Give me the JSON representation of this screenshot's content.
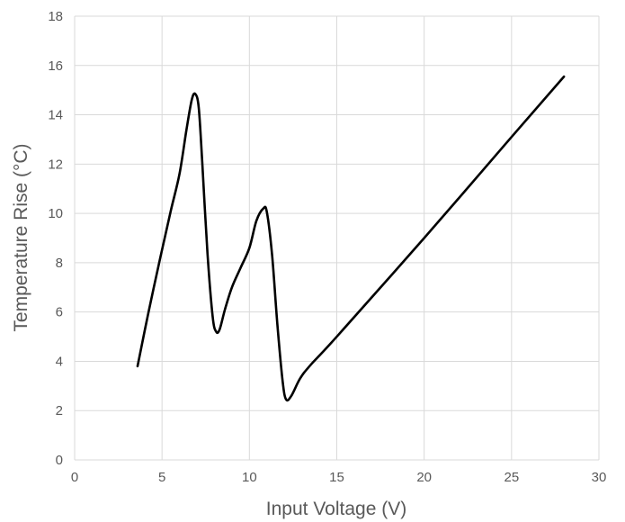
{
  "chart_data": {
    "type": "line",
    "title": "",
    "xlabel": "Input Voltage (V)",
    "ylabel": "Temperature Rise (°C)",
    "xlim": [
      0,
      30
    ],
    "ylim": [
      0,
      18
    ],
    "x_ticks": [
      0,
      5,
      10,
      15,
      20,
      25,
      30
    ],
    "y_ticks": [
      0,
      2,
      4,
      6,
      8,
      10,
      12,
      14,
      16,
      18
    ],
    "grid": true,
    "legend": "none",
    "series": [
      {
        "color": "#000000",
        "points": [
          [
            3.6,
            3.8
          ],
          [
            4.2,
            5.9
          ],
          [
            4.9,
            8.2
          ],
          [
            5.5,
            10.1
          ],
          [
            6.0,
            11.6
          ],
          [
            6.4,
            13.4
          ],
          [
            6.7,
            14.6
          ],
          [
            6.9,
            14.85
          ],
          [
            7.1,
            14.3
          ],
          [
            7.3,
            12.1
          ],
          [
            7.6,
            8.4
          ],
          [
            7.9,
            5.8
          ],
          [
            8.1,
            5.2
          ],
          [
            8.3,
            5.3
          ],
          [
            8.6,
            6.1
          ],
          [
            9.0,
            7.0
          ],
          [
            9.5,
            7.8
          ],
          [
            10.0,
            8.6
          ],
          [
            10.4,
            9.7
          ],
          [
            10.8,
            10.2
          ],
          [
            11.0,
            10.05
          ],
          [
            11.3,
            8.3
          ],
          [
            11.6,
            5.5
          ],
          [
            11.9,
            3.2
          ],
          [
            12.1,
            2.45
          ],
          [
            12.4,
            2.6
          ],
          [
            12.9,
            3.3
          ],
          [
            13.5,
            3.85
          ],
          [
            15.0,
            5.0
          ],
          [
            20.0,
            9.0
          ],
          [
            25.0,
            13.1
          ],
          [
            28.0,
            15.55
          ]
        ]
      }
    ]
  }
}
